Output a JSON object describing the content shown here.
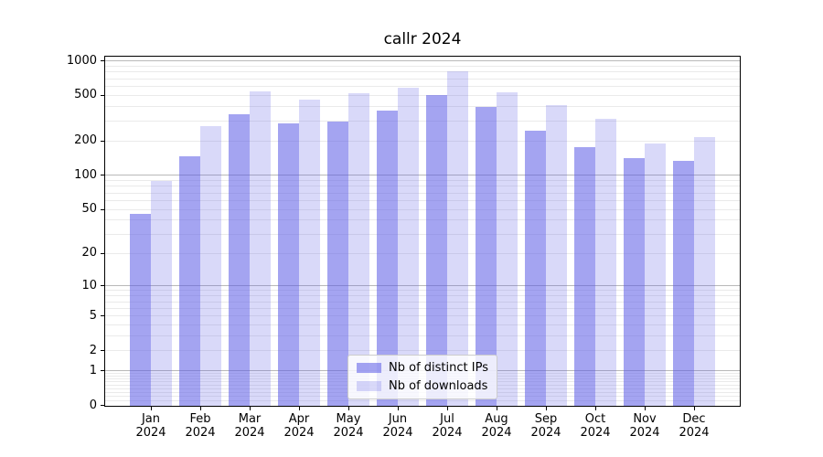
{
  "figure": {
    "title": "callr 2024"
  },
  "legend": {
    "items": [
      {
        "key": "distinct_ips",
        "label": "Nb of distinct IPs"
      },
      {
        "key": "downloads",
        "label": "Nb of downloads"
      }
    ]
  },
  "colors": {
    "bar_distinct_ips": "rgba(90,90,230,0.55)",
    "bar_downloads": "rgba(90,90,230,0.23)",
    "grid_major": "#b9b9b9",
    "grid_minor": "#eaeaea",
    "axis": "#000000"
  },
  "chart_data": {
    "type": "bar",
    "title": "callr 2024",
    "xlabel": "",
    "ylabel": "",
    "yscale": "log10(1+x)",
    "ylim": [
      0,
      1100
    ],
    "yticks": [
      0,
      1,
      2,
      5,
      10,
      20,
      50,
      100,
      200,
      500,
      1000
    ],
    "grid": true,
    "legend_position": "lower center",
    "categories": [
      "Jan",
      "Feb",
      "Mar",
      "Apr",
      "May",
      "Jun",
      "Jul",
      "Aug",
      "Sep",
      "Oct",
      "Nov",
      "Dec"
    ],
    "year_label": "2024",
    "series": [
      {
        "key": "distinct_ips",
        "name": "Nb of distinct IPs",
        "values": [
          46,
          148,
          345,
          287,
          299,
          371,
          512,
          402,
          249,
          178,
          142,
          135
        ]
      },
      {
        "key": "downloads",
        "name": "Nb of downloads",
        "values": [
          90,
          270,
          545,
          463,
          530,
          587,
          820,
          540,
          416,
          315,
          192,
          220
        ]
      }
    ]
  }
}
